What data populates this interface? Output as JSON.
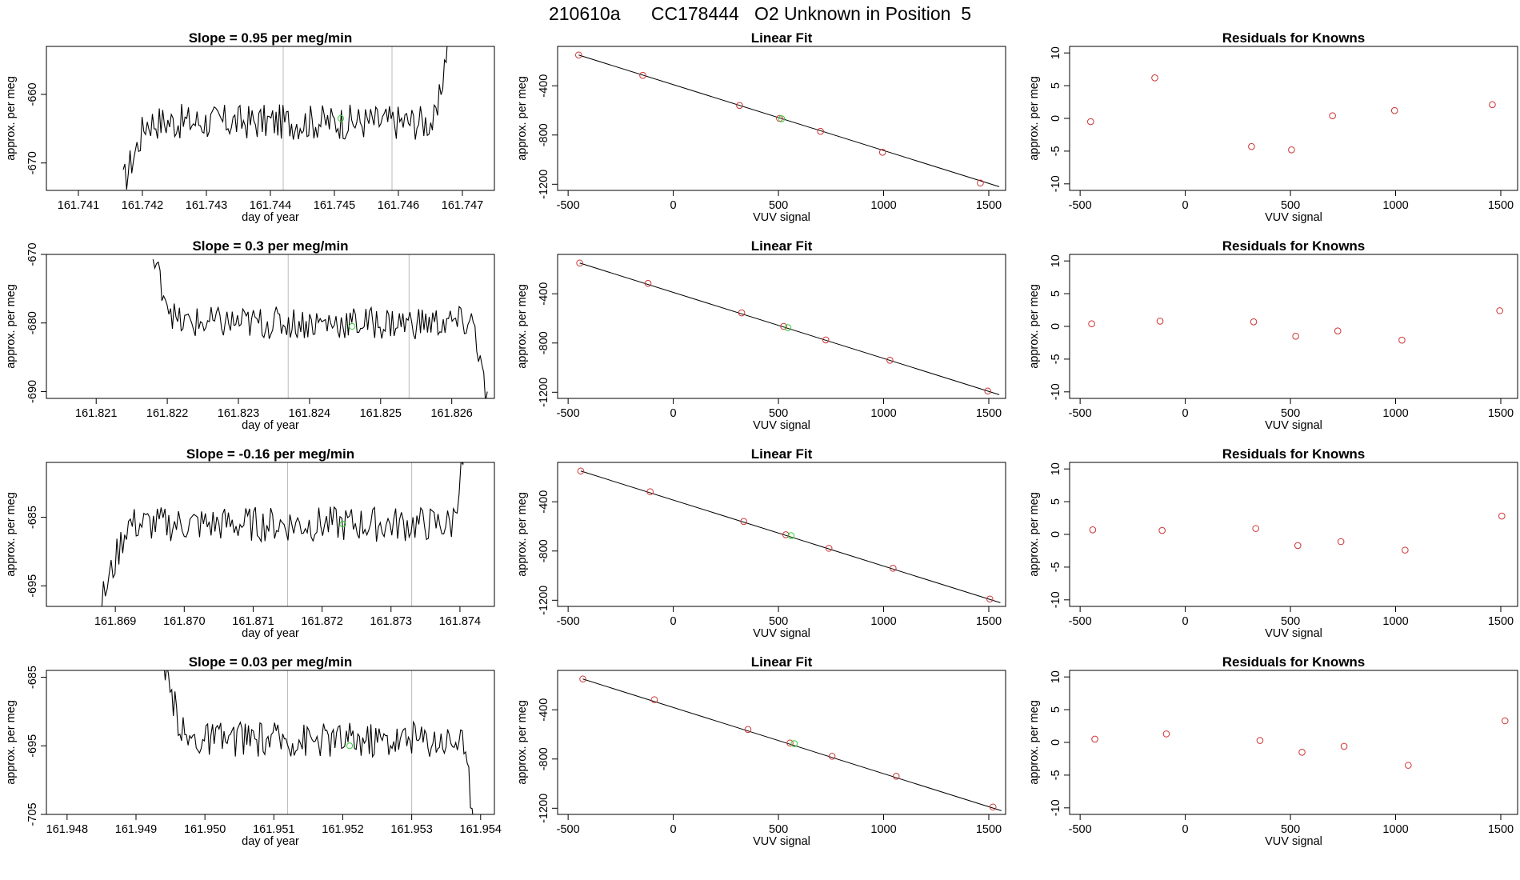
{
  "figure": {
    "title": "210610a      CC178444   O2 Unknown in Position  5"
  },
  "colors": {
    "axis": "#000000",
    "line": "#000000",
    "known": "#cd3333",
    "unknown": "#33cc33",
    "refline": "#bbbbbb"
  },
  "chart_data": [
    {
      "type": "line",
      "row": 0,
      "col": 0,
      "title": "Slope =  0.95  per meg/min",
      "xlabel": "day of year",
      "ylabel": "approx. per meg",
      "xlim": [
        161.7405,
        161.7475
      ],
      "ylim": [
        -674,
        -653
      ],
      "xticks": [
        "161.741",
        "161.742",
        "161.743",
        "161.744",
        "161.745",
        "161.746",
        "161.747"
      ],
      "yticks": [
        "-660",
        "-670"
      ],
      "vlines": [
        161.7442,
        161.7459
      ],
      "unknown_point": [
        161.7451,
        -663.5
      ],
      "series": [
        {
          "start": 161.7417,
          "end": 161.7468,
          "base": -673,
          "end_level": -664,
          "amp": 2.6,
          "end_rise": 14
        }
      ]
    },
    {
      "type": "scatter",
      "row": 0,
      "col": 1,
      "title": "Linear Fit",
      "xlabel": "VUV signal",
      "ylabel": "approx. per meg",
      "xlim": [
        -550,
        1580
      ],
      "ylim": [
        -1250,
        -80
      ],
      "xticks": [
        "-500",
        "0",
        "500",
        "1000",
        "1500"
      ],
      "yticks": [
        "-400",
        "-800",
        "-1200"
      ],
      "fit_line": [
        [
          -450,
          -150
        ],
        [
          1550,
          -1220
        ]
      ],
      "knowns": [
        [
          -450,
          -150
        ],
        [
          -145,
          -315
        ],
        [
          315,
          -560
        ],
        [
          505,
          -665
        ],
        [
          700,
          -770
        ],
        [
          995,
          -940
        ],
        [
          1460,
          -1190
        ]
      ],
      "unknowns": [
        [
          515,
          -668
        ]
      ]
    },
    {
      "type": "scatter",
      "row": 0,
      "col": 2,
      "title": "Residuals for Knowns",
      "xlabel": "VUV signal",
      "ylabel": "approx. per meg",
      "xlim": [
        -550,
        1580
      ],
      "ylim": [
        -11,
        11
      ],
      "xticks": [
        "-500",
        "0",
        "500",
        "1000",
        "1500"
      ],
      "yticks": [
        "10",
        "5",
        "0",
        "-5",
        "-10"
      ],
      "knowns": [
        [
          -450,
          -0.5
        ],
        [
          -145,
          6.2
        ],
        [
          315,
          -4.3
        ],
        [
          505,
          -4.8
        ],
        [
          700,
          0.4
        ],
        [
          995,
          1.2
        ],
        [
          1460,
          2.1
        ]
      ]
    },
    {
      "type": "line",
      "row": 1,
      "col": 0,
      "title": "Slope =  0.3  per meg/min",
      "xlabel": "day of year",
      "ylabel": "approx. per meg",
      "xlim": [
        161.8203,
        161.8266
      ],
      "ylim": [
        -691,
        -670
      ],
      "xticks": [
        "161.821",
        "161.822",
        "161.823",
        "161.824",
        "161.825",
        "161.826"
      ],
      "yticks": [
        "-670",
        "-680",
        "-690"
      ],
      "vlines": [
        161.8237,
        161.8254
      ],
      "unknown_point": [
        161.8246,
        -680.5
      ],
      "series": [
        {
          "start": 161.8218,
          "end": 161.8265,
          "base": -671,
          "end_level": -680,
          "amp": 2.4,
          "end_rise": -12
        }
      ]
    },
    {
      "type": "scatter",
      "row": 1,
      "col": 1,
      "title": "Linear Fit",
      "xlabel": "VUV signal",
      "ylabel": "approx. per meg",
      "xlim": [
        -550,
        1580
      ],
      "ylim": [
        -1250,
        -80
      ],
      "xticks": [
        "-500",
        "0",
        "500",
        "1000",
        "1500"
      ],
      "yticks": [
        "-400",
        "-800",
        "-1200"
      ],
      "fit_line": [
        [
          -445,
          -150
        ],
        [
          1550,
          -1220
        ]
      ],
      "knowns": [
        [
          -445,
          -150
        ],
        [
          -120,
          -315
        ],
        [
          325,
          -555
        ],
        [
          525,
          -665
        ],
        [
          725,
          -775
        ],
        [
          1030,
          -940
        ],
        [
          1495,
          -1190
        ]
      ],
      "unknowns": [
        [
          545,
          -675
        ]
      ]
    },
    {
      "type": "scatter",
      "row": 1,
      "col": 2,
      "title": "Residuals for Knowns",
      "xlabel": "VUV signal",
      "ylabel": "approx. per meg",
      "xlim": [
        -550,
        1580
      ],
      "ylim": [
        -11,
        11
      ],
      "xticks": [
        "-500",
        "0",
        "500",
        "1000",
        "1500"
      ],
      "yticks": [
        "10",
        "5",
        "0",
        "-5",
        "-10"
      ],
      "knowns": [
        [
          -445,
          0.4
        ],
        [
          -120,
          0.8
        ],
        [
          325,
          0.7
        ],
        [
          525,
          -1.5
        ],
        [
          725,
          -0.7
        ],
        [
          1030,
          -2.1
        ],
        [
          1495,
          2.4
        ]
      ]
    },
    {
      "type": "line",
      "row": 2,
      "col": 0,
      "title": "Slope =  -0.16  per meg/min",
      "xlabel": "day of year",
      "ylabel": "approx. per meg",
      "xlim": [
        161.868,
        161.8745
      ],
      "ylim": [
        -698,
        -677
      ],
      "xticks": [
        "161.869",
        "161.870",
        "161.871",
        "161.872",
        "161.873",
        "161.874"
      ],
      "yticks": [
        "-685",
        "-695"
      ],
      "vlines": [
        161.8715,
        161.8733
      ],
      "unknown_point": [
        161.8723,
        -686
      ],
      "series": [
        {
          "start": 161.8688,
          "end": 161.8741,
          "base": -697.5,
          "end_level": -686,
          "amp": 2.6,
          "end_rise": 12
        }
      ]
    },
    {
      "type": "scatter",
      "row": 2,
      "col": 1,
      "title": "Linear Fit",
      "xlabel": "VUV signal",
      "ylabel": "approx. per meg",
      "xlim": [
        -550,
        1580
      ],
      "ylim": [
        -1250,
        -80
      ],
      "xticks": [
        "-500",
        "0",
        "500",
        "1000",
        "1500"
      ],
      "yticks": [
        "-400",
        "-800",
        "-1200"
      ],
      "fit_line": [
        [
          -440,
          -150
        ],
        [
          1555,
          -1220
        ]
      ],
      "knowns": [
        [
          -440,
          -150
        ],
        [
          -110,
          -318
        ],
        [
          335,
          -560
        ],
        [
          535,
          -668
        ],
        [
          740,
          -778
        ],
        [
          1045,
          -940
        ],
        [
          1505,
          -1190
        ]
      ],
      "unknowns": [
        [
          560,
          -675
        ]
      ]
    },
    {
      "type": "scatter",
      "row": 2,
      "col": 2,
      "title": "Residuals for Knowns",
      "xlabel": "VUV signal",
      "ylabel": "approx. per meg",
      "xlim": [
        -550,
        1580
      ],
      "ylim": [
        -11,
        11
      ],
      "xticks": [
        "-500",
        "0",
        "500",
        "1000",
        "1500"
      ],
      "yticks": [
        "10",
        "5",
        "0",
        "-5",
        "-10"
      ],
      "knowns": [
        [
          -440,
          0.7
        ],
        [
          -110,
          0.6
        ],
        [
          335,
          0.9
        ],
        [
          535,
          -1.7
        ],
        [
          740,
          -1.1
        ],
        [
          1045,
          -2.4
        ],
        [
          1505,
          2.8
        ]
      ]
    },
    {
      "type": "line",
      "row": 3,
      "col": 0,
      "title": "Slope =  0.03  per meg/min",
      "xlabel": "day of year",
      "ylabel": "approx. per meg",
      "xlim": [
        161.9477,
        161.9542
      ],
      "ylim": [
        -705,
        -684
      ],
      "xticks": [
        "161.948",
        "161.949",
        "161.950",
        "161.951",
        "161.952",
        "161.953",
        "161.954"
      ],
      "yticks": [
        "-685",
        "-695",
        "-705"
      ],
      "vlines": [
        161.9512,
        161.953
      ],
      "unknown_point": [
        161.9521,
        -695
      ],
      "series": [
        {
          "start": 161.9494,
          "end": 161.9539,
          "base": -684.5,
          "end_level": -694,
          "amp": 2.6,
          "end_rise": -11
        }
      ]
    },
    {
      "type": "scatter",
      "row": 3,
      "col": 1,
      "title": "Linear Fit",
      "xlabel": "VUV signal",
      "ylabel": "approx. per meg",
      "xlim": [
        -550,
        1580
      ],
      "ylim": [
        -1250,
        -80
      ],
      "xticks": [
        "-500",
        "0",
        "500",
        "1000",
        "1500"
      ],
      "yticks": [
        "-400",
        "-800",
        "-1200"
      ],
      "fit_line": [
        [
          -430,
          -150
        ],
        [
          1560,
          -1220
        ]
      ],
      "knowns": [
        [
          -430,
          -150
        ],
        [
          -90,
          -318
        ],
        [
          355,
          -560
        ],
        [
          555,
          -670
        ],
        [
          755,
          -778
        ],
        [
          1060,
          -940
        ],
        [
          1520,
          -1190
        ]
      ],
      "unknowns": [
        [
          575,
          -675
        ]
      ]
    },
    {
      "type": "scatter",
      "row": 3,
      "col": 2,
      "title": "Residuals for Knowns",
      "xlabel": "VUV signal",
      "ylabel": "approx. per meg",
      "xlim": [
        -550,
        1580
      ],
      "ylim": [
        -11,
        11
      ],
      "xticks": [
        "-500",
        "0",
        "500",
        "1000",
        "1500"
      ],
      "yticks": [
        "10",
        "5",
        "0",
        "-5",
        "-10"
      ],
      "knowns": [
        [
          -430,
          0.5
        ],
        [
          -90,
          1.3
        ],
        [
          355,
          0.3
        ],
        [
          555,
          -1.5
        ],
        [
          755,
          -0.6
        ],
        [
          1060,
          -3.5
        ],
        [
          1520,
          3.3
        ]
      ]
    }
  ]
}
